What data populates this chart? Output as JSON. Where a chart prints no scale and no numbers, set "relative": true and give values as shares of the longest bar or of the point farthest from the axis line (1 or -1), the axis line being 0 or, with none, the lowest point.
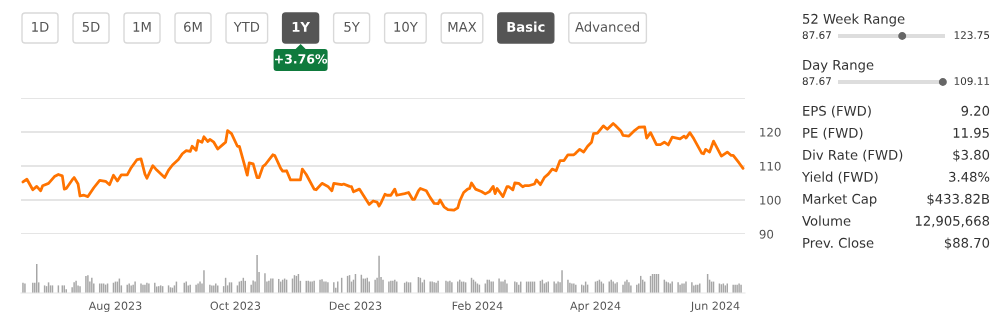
{
  "chart_data": [
    {
      "type": "line",
      "x": [
        "2023-06-15",
        "2023-06-17",
        "2023-06-20",
        "2023-06-22",
        "2023-06-24",
        "2023-06-25",
        "2023-06-28",
        "2023-07-01",
        "2023-07-03",
        "2023-07-05",
        "2023-07-06",
        "2023-07-07",
        "2023-07-10",
        "2023-07-11",
        "2023-07-13",
        "2023-07-14",
        "2023-07-16",
        "2023-07-18",
        "2023-07-21",
        "2023-07-24",
        "2023-07-27",
        "2023-07-29",
        "2023-07-31",
        "2023-08-02",
        "2023-08-04",
        "2023-08-07",
        "2023-08-09",
        "2023-08-12",
        "2023-08-14",
        "2023-08-16",
        "2023-08-17",
        "2023-08-20",
        "2023-08-22",
        "2023-08-26",
        "2023-08-28",
        "2023-08-30",
        "2023-09-02",
        "2023-09-04",
        "2023-09-06",
        "2023-09-08",
        "2023-09-09",
        "2023-09-11",
        "2023-09-12",
        "2023-09-14",
        "2023-09-15",
        "2023-09-17",
        "2023-09-18",
        "2023-09-20",
        "2023-09-22",
        "2023-09-25",
        "2023-09-26",
        "2023-09-27",
        "2023-09-29",
        "2023-10-02",
        "2023-10-03",
        "2023-10-05",
        "2023-10-07",
        "2023-10-08",
        "2023-10-10",
        "2023-10-12",
        "2023-10-13",
        "2023-10-15",
        "2023-10-16",
        "2023-10-20",
        "2023-10-21",
        "2023-10-24",
        "2023-10-25",
        "2023-10-27",
        "2023-10-29",
        "2023-11-03",
        "2023-11-04",
        "2023-11-06",
        "2023-11-10",
        "2023-11-11",
        "2023-11-14",
        "2023-11-17",
        "2023-11-19",
        "2023-11-20",
        "2023-11-24",
        "2023-11-25",
        "2023-11-28",
        "2023-11-29",
        "2023-11-30",
        "2023-12-03",
        "2023-12-05",
        "2023-12-08",
        "2023-12-10",
        "2023-12-12",
        "2023-12-13",
        "2023-12-14",
        "2023-12-16",
        "2023-12-17",
        "2023-12-19",
        "2023-12-21",
        "2023-12-22",
        "2023-12-26",
        "2023-12-28",
        "2023-12-30",
        "2023-12-31",
        "2024-01-02",
        "2024-01-03",
        "2024-01-06",
        "2024-01-08",
        "2024-01-10",
        "2024-01-12",
        "2024-01-13",
        "2024-01-15",
        "2024-01-17",
        "2024-01-20",
        "2024-01-22",
        "2024-01-23",
        "2024-01-25",
        "2024-01-27",
        "2024-01-28",
        "2024-01-29",
        "2024-01-31",
        "2024-02-03",
        "2024-02-05",
        "2024-02-07",
        "2024-02-09",
        "2024-02-10",
        "2024-02-11",
        "2024-02-14",
        "2024-02-16",
        "2024-02-17",
        "2024-02-19",
        "2024-02-20",
        "2024-02-22",
        "2024-02-24",
        "2024-02-25",
        "2024-02-27",
        "2024-03-01",
        "2024-03-02",
        "2024-03-04",
        "2024-03-06",
        "2024-03-08",
        "2024-03-10",
        "2024-03-12",
        "2024-03-14",
        "2024-03-16",
        "2024-03-18",
        "2024-03-21",
        "2024-03-22",
        "2024-03-24",
        "2024-03-26",
        "2024-03-28",
        "2024-03-30",
        "2024-03-31",
        "2024-04-02",
        "2024-04-05",
        "2024-04-07",
        "2024-04-10",
        "2024-04-11",
        "2024-04-14",
        "2024-04-15",
        "2024-04-18",
        "2024-04-21",
        "2024-04-23",
        "2024-04-26",
        "2024-04-27",
        "2024-04-29",
        "2024-05-02",
        "2024-05-04",
        "2024-05-06",
        "2024-05-08",
        "2024-05-10",
        "2024-05-14",
        "2024-05-16",
        "2024-05-17",
        "2024-05-19",
        "2024-05-21",
        "2024-05-25",
        "2024-05-26",
        "2024-05-27",
        "2024-05-29",
        "2024-05-31",
        "2024-06-04",
        "2024-06-07",
        "2024-06-09",
        "2024-06-10",
        "2024-06-13",
        "2024-06-15"
      ],
      "series": [
        {
          "color": "#ff7300",
          "values": [
            105.3,
            106.1,
            103.0,
            104.0,
            102.7,
            104.2,
            104.9,
            106.9,
            107.5,
            107.1,
            103.2,
            103.4,
            105.9,
            106.6,
            104.7,
            101.2,
            101.4,
            101.0,
            103.6,
            105.8,
            105.5,
            104.5,
            107.3,
            105.6,
            107.4,
            107.4,
            109.5,
            111.9,
            112.1,
            107.6,
            106.4,
            110.1,
            108.8,
            106.6,
            108.8,
            110.3,
            111.9,
            113.6,
            114.5,
            114.3,
            115.8,
            114.6,
            117.5,
            117.0,
            118.6,
            117.2,
            117.8,
            117.0,
            115.0,
            116.5,
            117.0,
            120.4,
            119.5,
            115.8,
            115.8,
            111.6,
            107.3,
            110.9,
            110.6,
            106.6,
            106.6,
            109.9,
            110.3,
            113.3,
            113.1,
            109.3,
            108.5,
            108.6,
            105.9,
            105.9,
            109.1,
            107.5,
            103.2,
            103.0,
            104.9,
            104.0,
            102.7,
            104.9,
            104.5,
            104.7,
            104.0,
            103.9,
            102.4,
            103.2,
            101.4,
            98.7,
            99.7,
            99.4,
            98.2,
            99.2,
            101.7,
            101.4,
            101.4,
            103.2,
            101.4,
            101.9,
            102.2,
            100.2,
            100.2,
            102.7,
            103.4,
            102.7,
            100.7,
            99.0,
            98.9,
            100.0,
            98.0,
            97.2,
            97.0,
            97.7,
            99.7,
            102.2,
            103.2,
            103.4,
            105.0,
            103.2,
            102.5,
            101.8,
            102.4,
            104.0,
            101.9,
            103.4,
            101.0,
            103.9,
            103.9,
            103.0,
            105.0,
            104.9,
            103.9,
            104.2,
            104.2,
            104.7,
            105.9,
            104.5,
            106.6,
            107.6,
            109.1,
            108.6,
            111.6,
            111.6,
            113.3,
            113.3,
            113.8,
            114.9,
            114.1,
            115.8,
            117.0,
            119.5,
            119.7,
            121.8,
            120.8,
            122.5,
            122.0,
            120.2,
            119.0,
            118.8,
            120.5,
            121.4,
            121.5,
            118.2,
            119.8,
            116.3,
            116.3,
            117.0,
            116.2,
            118.5,
            118.0,
            118.8,
            118.2,
            119.8,
            118.0,
            113.8,
            113.6,
            114.9,
            114.1,
            117.3,
            112.9,
            114.1,
            113.1,
            113.1,
            110.9,
            109.3
          ]
        }
      ],
      "xlim": [
        "2023-06-14",
        "2024-06-16"
      ],
      "ylim": [
        90,
        130
      ],
      "yticks": [
        90,
        100,
        110,
        120,
        {
          "value": 130,
          "label": null
        }
      ],
      "tick_labels": "y",
      "grid": "y"
    },
    {
      "type": "bar",
      "relative": true,
      "color": "#a6a6a6",
      "x": [
        "2023-06-15",
        "2023-06-16",
        "2023-06-20",
        "2023-06-21",
        "2023-06-22",
        "2023-06-23",
        "2023-06-26",
        "2023-06-27",
        "2023-06-28",
        "2023-06-29",
        "2023-06-30",
        "2023-07-03",
        "2023-07-05",
        "2023-07-06",
        "2023-07-07",
        "2023-07-10",
        "2023-07-11",
        "2023-07-12",
        "2023-07-13",
        "2023-07-14",
        "2023-07-17",
        "2023-07-18",
        "2023-07-19",
        "2023-07-20",
        "2023-07-21",
        "2023-07-24",
        "2023-07-25",
        "2023-07-26",
        "2023-07-27",
        "2023-07-28",
        "2023-07-31",
        "2023-08-01",
        "2023-08-02",
        "2023-08-03",
        "2023-08-04",
        "2023-08-07",
        "2023-08-08",
        "2023-08-09",
        "2023-08-10",
        "2023-08-11",
        "2023-08-14",
        "2023-08-15",
        "2023-08-16",
        "2023-08-17",
        "2023-08-18",
        "2023-08-21",
        "2023-08-22",
        "2023-08-23",
        "2023-08-24",
        "2023-08-25",
        "2023-08-28",
        "2023-08-29",
        "2023-08-30",
        "2023-08-31",
        "2023-09-01",
        "2023-09-05",
        "2023-09-06",
        "2023-09-07",
        "2023-09-08",
        "2023-09-11",
        "2023-09-12",
        "2023-09-13",
        "2023-09-14",
        "2023-09-15",
        "2023-09-18",
        "2023-09-19",
        "2023-09-20",
        "2023-09-21",
        "2023-09-22",
        "2023-09-25",
        "2023-09-26",
        "2023-09-27",
        "2023-09-28",
        "2023-09-29",
        "2023-10-02",
        "2023-10-03",
        "2023-10-04",
        "2023-10-05",
        "2023-10-06",
        "2023-10-09",
        "2023-10-10",
        "2023-10-11",
        "2023-10-12",
        "2023-10-13",
        "2023-10-16",
        "2023-10-17",
        "2023-10-18",
        "2023-10-19",
        "2023-10-20",
        "2023-10-23",
        "2023-10-24",
        "2023-10-25",
        "2023-10-26",
        "2023-10-27",
        "2023-10-30",
        "2023-10-31",
        "2023-11-01",
        "2023-11-02",
        "2023-11-03",
        "2023-11-06",
        "2023-11-07",
        "2023-11-08",
        "2023-11-09",
        "2023-11-10",
        "2023-11-13",
        "2023-11-14",
        "2023-11-15",
        "2023-11-16",
        "2023-11-17",
        "2023-11-20",
        "2023-11-21",
        "2023-11-22",
        "2023-11-24",
        "2023-11-27",
        "2023-11-28",
        "2023-11-29",
        "2023-11-30",
        "2023-12-01",
        "2023-12-04",
        "2023-12-05",
        "2023-12-06",
        "2023-12-07",
        "2023-12-08",
        "2023-12-11",
        "2023-12-12",
        "2023-12-13",
        "2023-12-14",
        "2023-12-15",
        "2023-12-18",
        "2023-12-19",
        "2023-12-20",
        "2023-12-21",
        "2023-12-22",
        "2023-12-26",
        "2023-12-27",
        "2023-12-28",
        "2023-12-29",
        "2024-01-02",
        "2024-01-03",
        "2024-01-04",
        "2024-01-05",
        "2024-01-08",
        "2024-01-09",
        "2024-01-10",
        "2024-01-11",
        "2024-01-12",
        "2024-01-16",
        "2024-01-17",
        "2024-01-18",
        "2024-01-19",
        "2024-01-22",
        "2024-01-23",
        "2024-01-24",
        "2024-01-25",
        "2024-01-26",
        "2024-01-29",
        "2024-01-30",
        "2024-01-31",
        "2024-02-01",
        "2024-02-02",
        "2024-02-05",
        "2024-02-06",
        "2024-02-07",
        "2024-02-08",
        "2024-02-09",
        "2024-02-12",
        "2024-02-13",
        "2024-02-14",
        "2024-02-15",
        "2024-02-16",
        "2024-02-20",
        "2024-02-21",
        "2024-02-22",
        "2024-02-23",
        "2024-02-26",
        "2024-02-27",
        "2024-02-28",
        "2024-02-29",
        "2024-03-01",
        "2024-03-04",
        "2024-03-05",
        "2024-03-06",
        "2024-03-07",
        "2024-03-08",
        "2024-03-11",
        "2024-03-12",
        "2024-03-13",
        "2024-03-14",
        "2024-03-15",
        "2024-03-18",
        "2024-03-19",
        "2024-03-20",
        "2024-03-21",
        "2024-03-22",
        "2024-03-25",
        "2024-03-26",
        "2024-03-27",
        "2024-03-28",
        "2024-04-01",
        "2024-04-02",
        "2024-04-03",
        "2024-04-04",
        "2024-04-05",
        "2024-04-08",
        "2024-04-09",
        "2024-04-10",
        "2024-04-11",
        "2024-04-12",
        "2024-04-15",
        "2024-04-16",
        "2024-04-17",
        "2024-04-18",
        "2024-04-19",
        "2024-04-22",
        "2024-04-23",
        "2024-04-24",
        "2024-04-25",
        "2024-04-26",
        "2024-04-29",
        "2024-04-30",
        "2024-05-01",
        "2024-05-02",
        "2024-05-03",
        "2024-05-06",
        "2024-05-07",
        "2024-05-08",
        "2024-05-09",
        "2024-05-10",
        "2024-05-13",
        "2024-05-14",
        "2024-05-15",
        "2024-05-16",
        "2024-05-17",
        "2024-05-20",
        "2024-05-21",
        "2024-05-22",
        "2024-05-23",
        "2024-05-24",
        "2024-05-28",
        "2024-05-29",
        "2024-05-30",
        "2024-05-31",
        "2024-06-03",
        "2024-06-04",
        "2024-06-05",
        "2024-06-06",
        "2024-06-07",
        "2024-06-10",
        "2024-06-11",
        "2024-06-12",
        "2024-06-13",
        "2024-06-14"
      ],
      "values": [
        0.27,
        0.25,
        0.27,
        0.27,
        0.76,
        0.28,
        0.2,
        0.18,
        0.28,
        0.2,
        0.2,
        0.2,
        0.2,
        0.2,
        0.1,
        0.15,
        0.28,
        0.32,
        0.2,
        0.18,
        0.45,
        0.47,
        0.3,
        0.4,
        0.25,
        0.25,
        0.25,
        0.25,
        0.22,
        0.25,
        0.27,
        0.3,
        0.3,
        0.38,
        0.2,
        0.22,
        0.25,
        0.2,
        0.22,
        0.3,
        0.25,
        0.22,
        0.22,
        0.27,
        0.25,
        0.27,
        0.17,
        0.18,
        0.2,
        0.18,
        0.2,
        0.15,
        0.14,
        0.2,
        0.3,
        0.27,
        0.3,
        0.2,
        0.22,
        0.22,
        0.25,
        0.3,
        0.25,
        0.6,
        0.22,
        0.2,
        0.2,
        0.25,
        0.2,
        0.18,
        0.4,
        0.2,
        0.28,
        0.28,
        0.2,
        0.3,
        0.32,
        0.4,
        0.32,
        0.22,
        0.33,
        0.3,
        1.0,
        0.55,
        0.52,
        0.3,
        0.32,
        0.38,
        0.38,
        0.37,
        0.3,
        0.35,
        0.38,
        0.35,
        0.38,
        0.47,
        0.45,
        0.5,
        0.32,
        0.32,
        0.32,
        0.3,
        0.3,
        0.32,
        0.35,
        0.36,
        0.3,
        0.3,
        0.28,
        0.28,
        0.14,
        0.3,
        0.4,
        0.45,
        0.47,
        0.3,
        0.35,
        0.5,
        0.48,
        0.38,
        0.38,
        0.4,
        0.3,
        0.35,
        0.4,
        0.98,
        0.42,
        0.35,
        0.3,
        0.32,
        0.32,
        0.35,
        0.3,
        0.27,
        0.3,
        0.28,
        0.28,
        0.42,
        0.4,
        0.28,
        0.35,
        0.3,
        0.3,
        0.28,
        0.27,
        0.32,
        0.32,
        0.3,
        0.32,
        0.28,
        0.3,
        0.35,
        0.3,
        0.3,
        0.28,
        0.4,
        0.35,
        0.3,
        0.25,
        0.22,
        0.25,
        0.35,
        0.35,
        0.3,
        0.3,
        0.38,
        0.3,
        0.3,
        0.35,
        0.25,
        0.3,
        0.28,
        0.22,
        0.3,
        0.3,
        0.3,
        0.3,
        0.3,
        0.3,
        0.32,
        0.35,
        0.25,
        0.28,
        0.3,
        0.3,
        0.25,
        0.3,
        0.28,
        0.6,
        0.35,
        0.27,
        0.25,
        0.25,
        0.22,
        0.22,
        0.2,
        0.3,
        0.22,
        0.3,
        0.32,
        0.35,
        0.3,
        0.25,
        0.3,
        0.35,
        0.3,
        0.25,
        0.28,
        0.22,
        0.3,
        0.35,
        0.28,
        0.2,
        0.22,
        0.25,
        0.45,
        0.35,
        0.3,
        0.45,
        0.5,
        0.5,
        0.5,
        0.5,
        0.35,
        0.3,
        0.28,
        0.25,
        0.3,
        0.28,
        0.22,
        0.25,
        0.25,
        0.3,
        0.28,
        0.2,
        0.22,
        0.22,
        0.25,
        0.5,
        0.35,
        0.3,
        0.3,
        0.25,
        0.23,
        0.25,
        0.2,
        0.25,
        0.22,
        0.22,
        0.22,
        0.25,
        0.22
      ],
      "xlim": [
        "2023-06-14",
        "2024-06-16"
      ],
      "xticks": [
        {
          "value": "2023-08-01",
          "label": "Aug 2023"
        },
        {
          "value": "2023-10-01",
          "label": "Oct 2023"
        },
        {
          "value": "2023-12-01",
          "label": "Dec 2023"
        },
        {
          "value": "2024-02-01",
          "label": "Feb 2024"
        },
        {
          "value": "2024-04-01",
          "label": "Apr 2024"
        },
        {
          "value": "2024-06-01",
          "label": "Jun 2024"
        }
      ]
    },
    {
      "type": "other",
      "categories": [
        "1D",
        "5D",
        "1M",
        "6M",
        "YTD",
        "1Y",
        "5Y",
        "10Y",
        "MAX",
        "Basic",
        "Advanced"
      ],
      "colors": [
        "#ffffff",
        "#ffffff",
        "#ffffff",
        "#ffffff",
        "#ffffff",
        "#555555",
        "#ffffff",
        "#ffffff",
        "#ffffff",
        "#555555",
        "#ffffff"
      ],
      "annotations": [
        "+3.76%"
      ]
    },
    {
      "type": "other",
      "annotations": [
        "52 Week Range",
        "87.67",
        "123.75",
        "Day Range",
        "87.67",
        "109.11",
        "EPS (FWD)",
        "9.20",
        "PE (FWD)",
        "11.95",
        "Div Rate (FWD)",
        "$3.80",
        "Yield (FWD)",
        "3.48%",
        "Market Cap",
        "$433.82B",
        "Volume",
        "12,905,668",
        "Prev. Close",
        "$88.70"
      ]
    }
  ]
}
